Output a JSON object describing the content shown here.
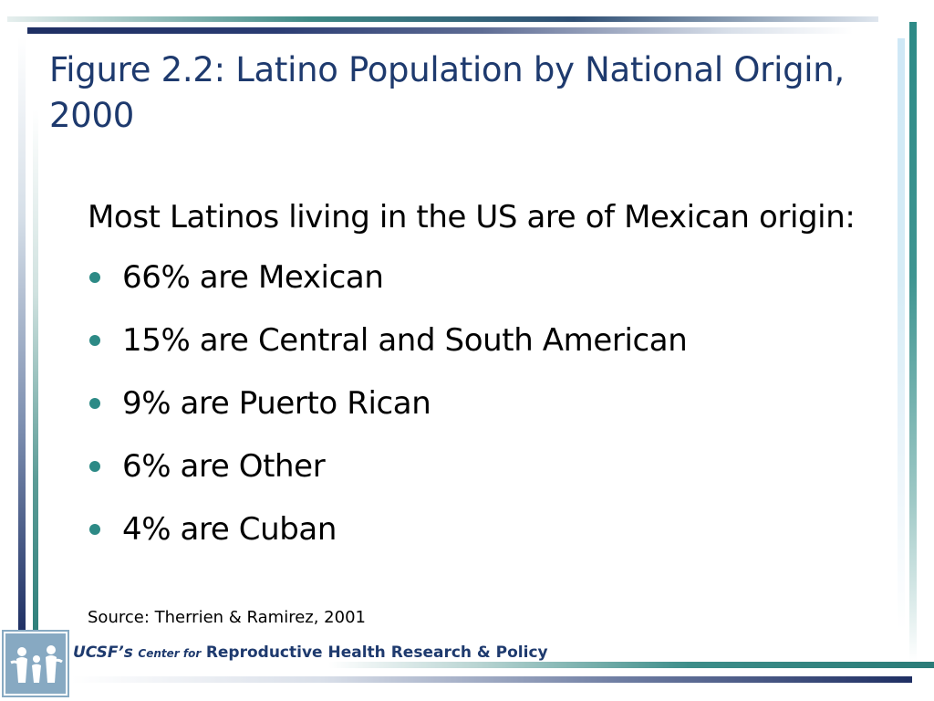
{
  "slide": {
    "title": "Figure 2.2: Latino Population by National Origin, 2000",
    "intro": "Most Latinos living in the US are of Mexican origin:",
    "bullets": [
      "66% are Mexican",
      "15% are Central and South American",
      "9% are Puerto Rican",
      "6% are Other",
      "4% are Cuban"
    ],
    "source": "Source: Therrien & Ramirez, 2001"
  },
  "footer": {
    "org": "UCSF’s",
    "center_for": "Center for",
    "program": "Reproductive Health Research & Policy",
    "logo_icon": "people-logo-icon"
  },
  "colors": {
    "title": "#1e3a6e",
    "bullet": "#2d8a86",
    "navy_bar": "#1e2f63",
    "teal_bar": "#2d8a86"
  }
}
